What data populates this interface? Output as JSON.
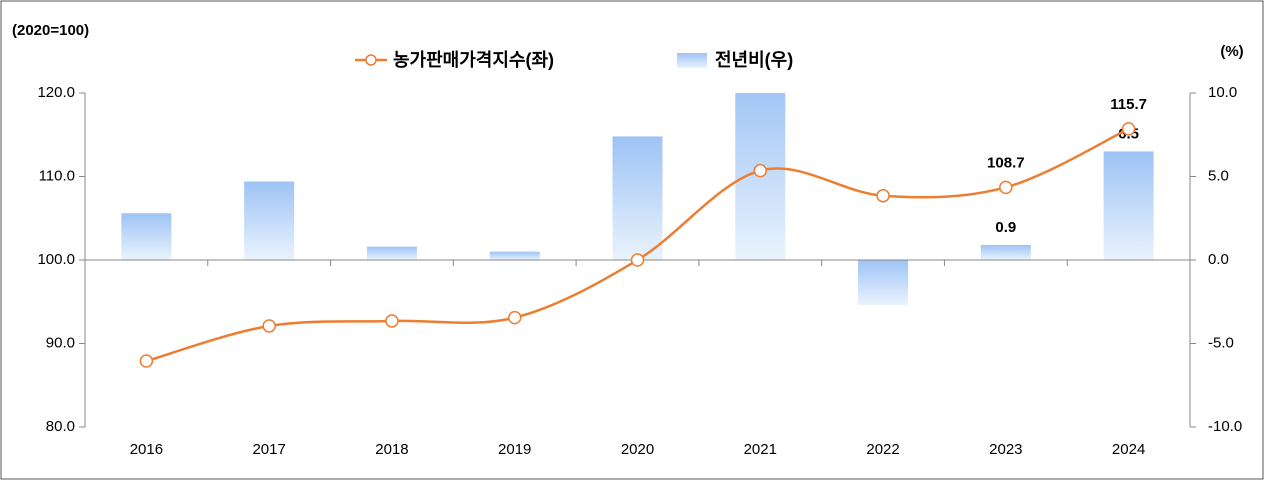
{
  "chart_data": {
    "type": "bar-line",
    "y_label": "(2020=100)",
    "y2_label": "(%)",
    "categories": [
      "2016",
      "2017",
      "2018",
      "2019",
      "2020",
      "2021",
      "2022",
      "2023",
      "2024"
    ],
    "series": [
      {
        "name": "농가판매가격지수(좌)",
        "type": "line",
        "axis": "y",
        "color": "#ed7d31",
        "values": [
          87.9,
          92.1,
          92.7,
          93.1,
          100.0,
          110.7,
          107.7,
          108.7,
          115.7
        ],
        "data_labels": [
          7,
          8
        ]
      },
      {
        "name": "전년비(우)",
        "type": "bar",
        "axis": "y2",
        "color": "#9dc3f5",
        "values": [
          2.8,
          4.7,
          0.8,
          0.5,
          7.4,
          10.7,
          -2.7,
          0.9,
          6.5
        ],
        "data_labels": [
          7,
          8
        ]
      }
    ],
    "ylim": [
      80,
      120
    ],
    "yticks": [
      {
        "value": 80,
        "label": "80.0"
      },
      {
        "value": 90,
        "label": "90.0"
      },
      {
        "value": 100,
        "label": "100.0"
      },
      {
        "value": 110,
        "label": "110.0"
      },
      {
        "value": 120,
        "label": "120.0"
      }
    ],
    "y2lim": [
      -10,
      10
    ],
    "y2ticks": [
      {
        "value": -10,
        "label": "-10.0"
      },
      {
        "value": -5,
        "label": "-5.0"
      },
      {
        "value": 0,
        "label": "0.0"
      },
      {
        "value": 5,
        "label": "5.0"
      },
      {
        "value": 10,
        "label": "10.0"
      }
    ]
  }
}
